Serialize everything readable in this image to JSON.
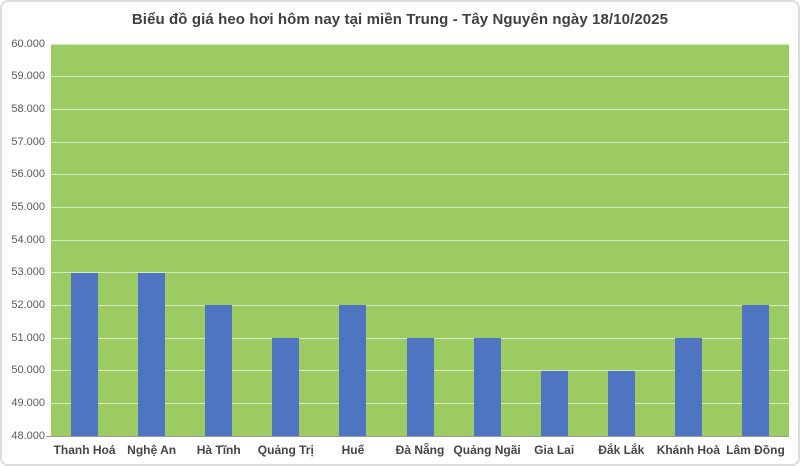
{
  "chart_data": {
    "type": "bar",
    "title": "Biểu đồ giá heo hơi hôm nay tại miền Trung - Tây Nguyên ngày 18/10/2025",
    "categories": [
      "Thanh Hoá",
      "Nghệ An",
      "Hà Tĩnh",
      "Quảng Trị",
      "Huế",
      "Đà Nẵng",
      "Quảng Ngãi",
      "Gia Lai",
      "Đắk Lắk",
      "Khánh Hoà",
      "Lâm Đồng"
    ],
    "values": [
      53000,
      53000,
      52000,
      51000,
      52000,
      51000,
      51000,
      50000,
      50000,
      51000,
      52000
    ],
    "xlabel": "",
    "ylabel": "",
    "ylim": [
      48000,
      60000
    ],
    "ytick_labels": [
      "60.000",
      "59.000",
      "58.000",
      "57.000",
      "56.000",
      "55.000",
      "54.000",
      "53.000",
      "52.000",
      "51.000",
      "50.000",
      "49.000",
      "48.000"
    ],
    "grid": true,
    "legend": false,
    "colors": {
      "bar": "#4e74c2",
      "plot_background": "#9ccb63",
      "gridline": "rgba(255,255,255,0.6)",
      "axis_line": "#9c9c9c",
      "title_text": "#404040",
      "ytick_text": "#595959",
      "xtick_text": "#454545"
    }
  }
}
